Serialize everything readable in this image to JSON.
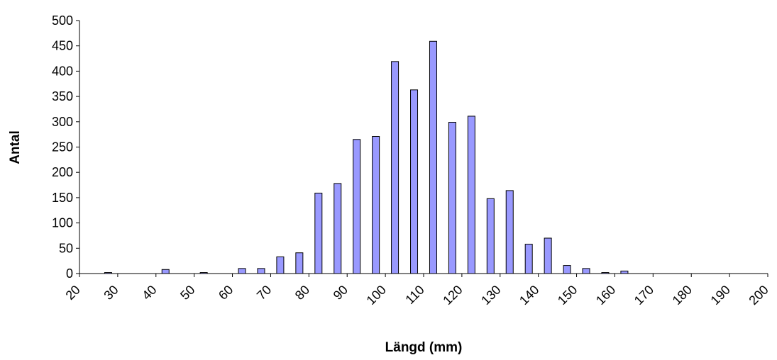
{
  "chart_data": {
    "type": "bar",
    "xlabel": "Längd (mm)",
    "ylabel": "Antal",
    "ylim": [
      0,
      500
    ],
    "yticks": [
      0,
      50,
      100,
      150,
      200,
      250,
      300,
      350,
      400,
      450,
      500
    ],
    "xlim": [
      20,
      200
    ],
    "xticks": [
      20,
      30,
      40,
      50,
      60,
      70,
      80,
      90,
      100,
      110,
      120,
      130,
      140,
      150,
      160,
      170,
      180,
      190,
      200
    ],
    "grid": false,
    "legend": "none",
    "bar_color": "#9999ff",
    "bar_edge_color": "#000000",
    "x": [
      27.5,
      42.5,
      52.5,
      62.5,
      67.5,
      72.5,
      77.5,
      82.5,
      87.5,
      92.5,
      97.5,
      102.5,
      107.5,
      112.5,
      117.5,
      122.5,
      127.5,
      132.5,
      137.5,
      142.5,
      147.5,
      152.5,
      157.5,
      162.5
    ],
    "values": [
      2,
      8,
      2,
      10,
      10,
      33,
      41,
      159,
      178,
      265,
      271,
      419,
      363,
      459,
      299,
      311,
      148,
      164,
      58,
      70,
      16,
      10,
      2,
      5
    ]
  }
}
